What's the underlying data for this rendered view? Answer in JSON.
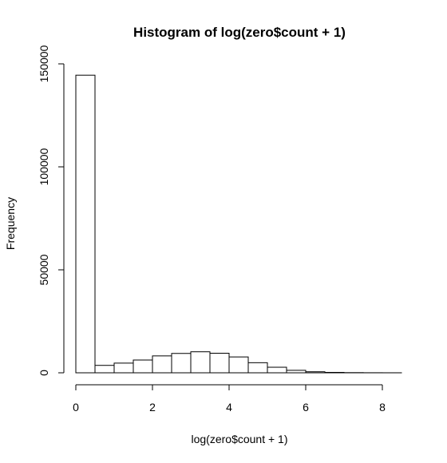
{
  "chart_data": {
    "type": "bar",
    "title": "Histogram of log(zero$count + 1)",
    "xlabel": "log(zero$count + 1)",
    "ylabel": "Frequency",
    "bin_width": 0.5,
    "bin_starts": [
      0,
      0.5,
      1,
      1.5,
      2,
      2.5,
      3,
      3.5,
      4,
      4.5,
      5,
      5.5,
      6,
      6.5,
      7,
      7.5,
      8
    ],
    "values": [
      144500,
      3600,
      4700,
      6200,
      8200,
      9400,
      10200,
      9500,
      7700,
      4900,
      2700,
      1200,
      500,
      200,
      80,
      30,
      10
    ],
    "xlim": [
      0,
      8.5
    ],
    "ylim": [
      0,
      150000
    ],
    "x_ticks": [
      0,
      2,
      4,
      6,
      8
    ],
    "x_tick_labels": [
      "0",
      "2",
      "4",
      "6",
      "8"
    ],
    "y_ticks": [
      0,
      50000,
      100000,
      150000
    ],
    "y_tick_labels": [
      "0",
      "50000",
      "100000",
      "150000"
    ],
    "grid": false
  }
}
